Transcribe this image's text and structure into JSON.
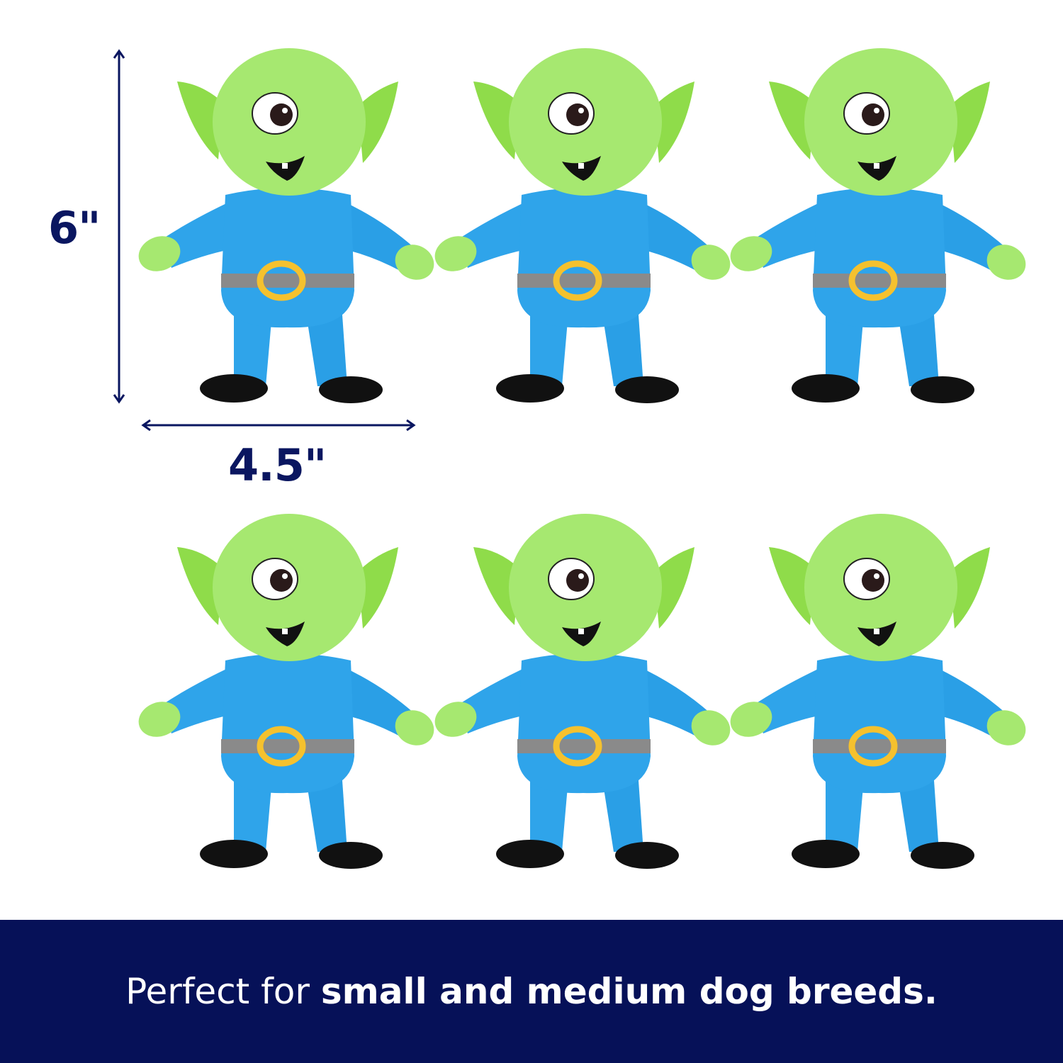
{
  "dimensions": {
    "height_label": "6\"",
    "width_label": "4.5\""
  },
  "banner": {
    "text_regular": "Perfect for ",
    "text_bold": "small and medium dog breeds."
  },
  "product": {
    "toy_count": 6,
    "description_icon": "alien-plush-toy"
  },
  "colors": {
    "navy": "#061158",
    "head_green": "#a6e870",
    "suit_blue": "#2fa4ea",
    "belt_gray": "#8a8a8a",
    "buckle_yellow": "#f5c12e",
    "shoe_black": "#111111"
  }
}
